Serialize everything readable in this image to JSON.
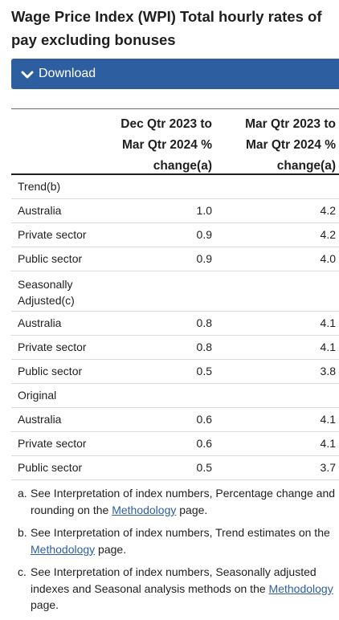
{
  "title": {
    "line1": "Wage Price Index (WPI) Total hourly rates of",
    "line2": "pay excluding bonuses"
  },
  "download": {
    "label": "Download"
  },
  "table": {
    "col1": [
      "Dec Qtr 2023 to",
      "Mar Qtr 2024 %",
      "change(a)"
    ],
    "col2": [
      "Mar Qtr 2023 to",
      "Mar Qtr 2024 %",
      "change(a)"
    ],
    "rows": [
      {
        "label": "Trend(b)",
        "v1": "",
        "v2": ""
      },
      {
        "label": "Australia",
        "v1": "1.0",
        "v2": "4.2"
      },
      {
        "label": "Private sector",
        "v1": "0.9",
        "v2": "4.2"
      },
      {
        "label": "Public sector",
        "v1": "0.9",
        "v2": "4.0"
      },
      {
        "label": "Seasonally",
        "label2": "Adjusted(c)",
        "v1": "",
        "v2": ""
      },
      {
        "label": "Australia",
        "v1": "0.8",
        "v2": "4.1"
      },
      {
        "label": "Private sector",
        "v1": "0.8",
        "v2": "4.1"
      },
      {
        "label": "Public sector",
        "v1": "0.5",
        "v2": "3.8"
      },
      {
        "label": "Original",
        "v1": "",
        "v2": ""
      },
      {
        "label": "Australia",
        "v1": "0.6",
        "v2": "4.1"
      },
      {
        "label": "Private sector",
        "v1": "0.6",
        "v2": "4.1"
      },
      {
        "label": "Public sector",
        "v1": "0.5",
        "v2": "3.7"
      }
    ]
  },
  "notes": {
    "a": {
      "marker": "a.",
      "line1": "See Interpretation of index numbers, Percentage change and",
      "line2_pre": "rounding on the ",
      "link": "Methodology",
      "line2_post": " page."
    },
    "b": {
      "marker": "b.",
      "line1": "See Interpretation of index numbers, Trend estimates on the",
      "link": "Methodology",
      "line2_post": " page."
    },
    "c": {
      "marker": "c.",
      "line1": "See Interpretation of index numbers, Seasonally adjusted",
      "line2_pre": "indexes and Seasonal analysis methods on the ",
      "link": "Methodology",
      "line3": "page."
    }
  }
}
